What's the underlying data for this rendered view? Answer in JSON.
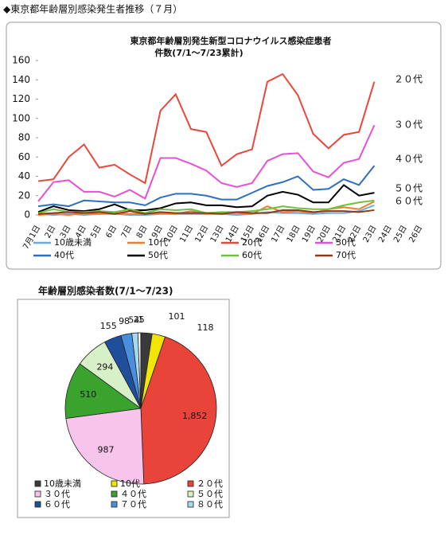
{
  "header": "◆東京都年齢層別感染発生者推移（７月）",
  "chart_data": [
    {
      "type": "line",
      "title": "東京都年齢層別発生新型コロナウイルス感染症患者",
      "subtitle": "件数(7/1～7/23累計)",
      "categories": [
        "7月1日",
        "2日",
        "3日",
        "4日",
        "5日",
        "6日",
        "7日",
        "8日",
        "9日",
        "10日",
        "11日",
        "12日",
        "13日",
        "14日",
        "15日",
        "16日",
        "17日",
        "18日",
        "19日",
        "20日",
        "21日",
        "22日",
        "23日",
        "24日",
        "25日",
        "26日"
      ],
      "ylim": [
        0,
        160
      ],
      "yticks": [
        0,
        20,
        40,
        60,
        80,
        100,
        120,
        140,
        160
      ],
      "annotations": [
        "２０代",
        "３０代",
        "４０代",
        "５０代",
        "６０代"
      ],
      "series": [
        {
          "name": "10歳未満",
          "color": "#6fa8dc",
          "values": [
            1,
            0,
            1,
            0,
            1,
            1,
            0,
            0,
            1,
            1,
            1,
            1,
            1,
            0,
            1,
            3,
            2,
            2,
            1,
            2,
            2,
            4,
            10,
            null,
            null,
            null
          ]
        },
        {
          "name": "10代",
          "color": "#ed7d31",
          "values": [
            0,
            1,
            0,
            2,
            1,
            2,
            1,
            1,
            2,
            1,
            4,
            1,
            2,
            2,
            1,
            9,
            3,
            4,
            2,
            6,
            8,
            6,
            14,
            null,
            null,
            null
          ]
        },
        {
          "name": "20代",
          "color": "#e8483c",
          "values": [
            35,
            37,
            60,
            73,
            49,
            52,
            42,
            33,
            108,
            125,
            89,
            86,
            51,
            63,
            68,
            138,
            146,
            124,
            84,
            69,
            83,
            86,
            138,
            null,
            null,
            null
          ]
        },
        {
          "name": "30代",
          "color": "#e84fd6",
          "values": [
            14,
            34,
            36,
            24,
            24,
            19,
            26,
            17,
            59,
            59,
            53,
            46,
            33,
            29,
            33,
            56,
            63,
            64,
            45,
            39,
            54,
            58,
            93,
            null,
            null,
            null
          ]
        },
        {
          "name": "40代",
          "color": "#2e6fc0",
          "values": [
            9,
            11,
            9,
            15,
            14,
            13,
            13,
            10,
            18,
            22,
            22,
            20,
            16,
            16,
            23,
            30,
            34,
            40,
            26,
            27,
            37,
            31,
            51,
            null,
            null,
            null
          ]
        },
        {
          "name": "50代",
          "color": "#000000",
          "values": [
            3,
            9,
            5,
            4,
            6,
            11,
            5,
            5,
            7,
            12,
            13,
            10,
            10,
            8,
            9,
            20,
            24,
            21,
            13,
            13,
            31,
            20,
            23,
            null,
            null,
            null
          ]
        },
        {
          "name": "60代",
          "color": "#70c040",
          "values": [
            2,
            6,
            3,
            3,
            4,
            3,
            6,
            2,
            6,
            5,
            6,
            2,
            3,
            3,
            4,
            6,
            9,
            7,
            6,
            6,
            10,
            13,
            15,
            null,
            null,
            null
          ]
        },
        {
          "name": "70代",
          "color": "#8b3a1a",
          "values": [
            1,
            2,
            3,
            2,
            3,
            1,
            4,
            1,
            3,
            2,
            2,
            2,
            1,
            3,
            2,
            2,
            5,
            5,
            3,
            4,
            4,
            3,
            5,
            null,
            null,
            null
          ]
        }
      ]
    },
    {
      "type": "pie",
      "title": "年齢層別感染者数(7/1～7/23)",
      "categories": [
        "10歳未満",
        "10代",
        "２０代",
        "３０代",
        "４０代",
        "５０代",
        "６０代",
        "７０代",
        "８０代",
        null,
        null
      ],
      "values": [
        101,
        118,
        1852,
        987,
        510,
        294,
        155,
        98,
        54,
        25,
        1
      ],
      "value_labels": [
        "101",
        "118",
        "1,852",
        "987",
        "510",
        "294",
        "155",
        "98",
        "54",
        "25",
        "1"
      ],
      "colors": [
        "#3a3a3a",
        "#f2e600",
        "#e8443a",
        "#f7c4ec",
        "#3aa32e",
        "#d8f0c8",
        "#1f4f9a",
        "#4a8ee0",
        "#a8d8f0",
        "#ffffff",
        "#000000"
      ]
    }
  ]
}
